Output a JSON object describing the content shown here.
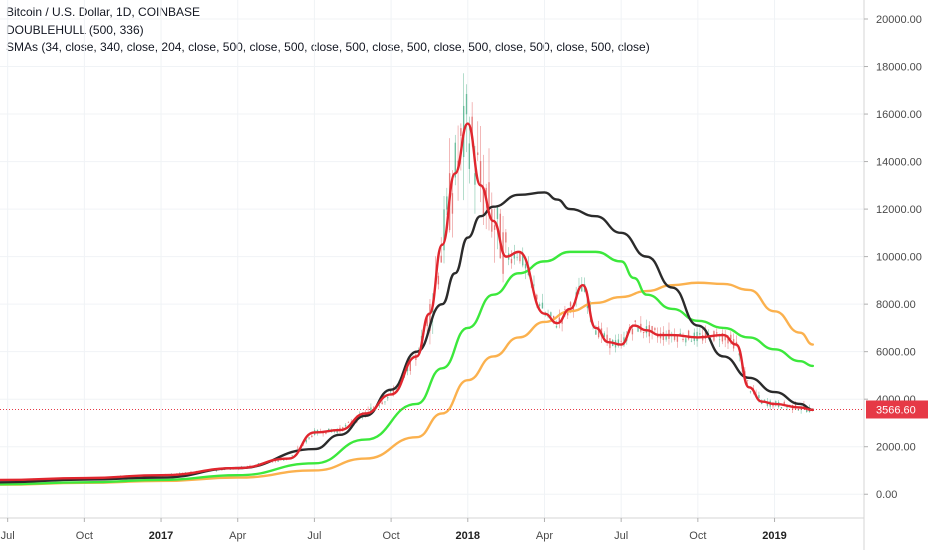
{
  "legend": {
    "symbol": "Bitcoin / U.S. Dollar, 1D, COINBASE",
    "indicator1": "DOUBLEHULL (500, 336)",
    "indicator2": "SMAs (34, close, 340, close, 204, close, 500, close, 500, close, 500, close, 500, close, 500, close, 500, close, 500, close)"
  },
  "last_price": {
    "label": "3566.60",
    "value": 3566.6,
    "color": "#e63946"
  },
  "colors": {
    "red_ma": "#e0262e",
    "black_ma": "#2b2b2b",
    "green_ma": "#3ce83c",
    "orange_ma": "#fbb14e",
    "candle_up": "#4caf87",
    "candle_down": "#e05a5a"
  },
  "chart_data": {
    "type": "line",
    "x_unit": "months since 2016-07-01",
    "x_ticks": [
      {
        "label": "Jul",
        "x": 0,
        "bold": false
      },
      {
        "label": "Oct",
        "x": 3,
        "bold": false
      },
      {
        "label": "2017",
        "x": 6,
        "bold": true
      },
      {
        "label": "Apr",
        "x": 9,
        "bold": false
      },
      {
        "label": "Jul",
        "x": 12,
        "bold": false
      },
      {
        "label": "Oct",
        "x": 15,
        "bold": false
      },
      {
        "label": "2018",
        "x": 18,
        "bold": true
      },
      {
        "label": "Apr",
        "x": 21,
        "bold": false
      },
      {
        "label": "Jul",
        "x": 24,
        "bold": false
      },
      {
        "label": "Oct",
        "x": 27,
        "bold": false
      },
      {
        "label": "2019",
        "x": 30,
        "bold": true
      }
    ],
    "y_ticks": [
      {
        "label": "0.00",
        "value": 0
      },
      {
        "label": "2000.00",
        "value": 2000
      },
      {
        "label": "4000.00",
        "value": 4000
      },
      {
        "label": "6000.00",
        "value": 6000
      },
      {
        "label": "8000.00",
        "value": 8000
      },
      {
        "label": "10000.00",
        "value": 10000
      },
      {
        "label": "12000.00",
        "value": 12000
      },
      {
        "label": "14000.00",
        "value": 14000
      },
      {
        "label": "16000.00",
        "value": 16000
      },
      {
        "label": "18000.00",
        "value": 18000
      },
      {
        "label": "20000.00",
        "value": 20000
      }
    ],
    "ylim": [
      -1000,
      20800
    ],
    "xlim": [
      -0.3,
      33.5
    ],
    "series": [
      {
        "key": "orange",
        "x": [
          -0.3,
          3,
          6,
          9,
          12,
          14,
          16,
          17,
          18,
          19,
          20,
          21,
          22,
          23,
          24,
          25,
          26,
          27,
          28,
          29,
          30,
          31,
          31.5
        ],
        "values": [
          400,
          480,
          560,
          700,
          1000,
          1500,
          2400,
          3400,
          4800,
          5800,
          6600,
          7250,
          7700,
          8050,
          8300,
          8550,
          8800,
          8900,
          8850,
          8600,
          7700,
          6800,
          6300
        ]
      },
      {
        "key": "green",
        "x": [
          -0.3,
          3,
          6,
          9,
          12,
          14,
          16,
          17,
          18,
          19,
          20,
          21,
          22,
          23,
          24,
          24.5,
          25,
          26,
          27,
          28,
          29,
          30,
          31,
          31.5
        ],
        "values": [
          420,
          500,
          600,
          800,
          1300,
          2300,
          3800,
          5300,
          7000,
          8400,
          9300,
          9800,
          10200,
          10200,
          9800,
          9100,
          8400,
          7800,
          7300,
          7000,
          6600,
          6100,
          5600,
          5400
        ]
      },
      {
        "key": "black",
        "x": [
          -0.3,
          3,
          6,
          9,
          12,
          13,
          14,
          15,
          16,
          17,
          17.5,
          18,
          18.5,
          19,
          20,
          21,
          21.5,
          22,
          23,
          24,
          25,
          26,
          27,
          28,
          29,
          30,
          31,
          31.5
        ],
        "values": [
          500,
          620,
          700,
          1100,
          1900,
          2500,
          3300,
          4400,
          6000,
          8000,
          9300,
          10800,
          11700,
          12100,
          12600,
          12700,
          12400,
          12000,
          11700,
          11000,
          10000,
          8700,
          7100,
          5800,
          4900,
          4300,
          3800,
          3550
        ]
      },
      {
        "key": "red",
        "x": [
          -0.3,
          3,
          6,
          9,
          11,
          12,
          13,
          14,
          15,
          16,
          16.5,
          17,
          17.5,
          18,
          18.5,
          19,
          19.5,
          20,
          21,
          21.5,
          22,
          22.5,
          23,
          23.5,
          24,
          24.5,
          25,
          25.5,
          26,
          27,
          28,
          28.5,
          29,
          29.5,
          30,
          31,
          31.5
        ],
        "values": [
          600,
          680,
          800,
          1100,
          1500,
          2600,
          2700,
          3400,
          4200,
          5800,
          7600,
          10500,
          13500,
          15600,
          13000,
          11500,
          10000,
          10200,
          7600,
          7200,
          7800,
          8800,
          7000,
          6400,
          6300,
          7100,
          6900,
          6700,
          6700,
          6600,
          6700,
          6300,
          4500,
          3900,
          3800,
          3650,
          3550
        ]
      }
    ]
  }
}
